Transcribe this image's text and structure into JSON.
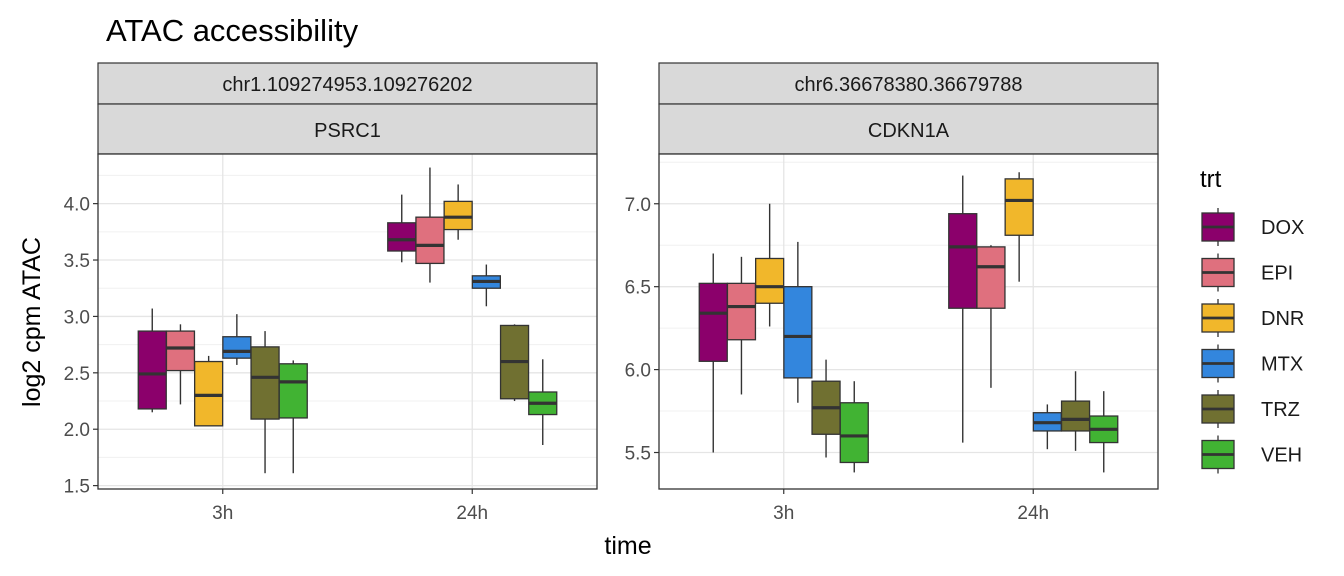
{
  "chart_data": {
    "type": "boxplot",
    "title": "ATAC accessibility",
    "xlabel": "time",
    "ylabel": "log2 cpm ATAC",
    "categories": [
      "3h",
      "24h"
    ],
    "legend": {
      "title": "trt",
      "position": "right",
      "items": [
        {
          "name": "DOX",
          "color": "#8B006B"
        },
        {
          "name": "EPI",
          "color": "#DF707E"
        },
        {
          "name": "DNR",
          "color": "#F1B72B"
        },
        {
          "name": "MTX",
          "color": "#3386DD"
        },
        {
          "name": "TRZ",
          "color": "#707031"
        },
        {
          "name": "VEH",
          "color": "#41B333"
        }
      ]
    },
    "panels": [
      {
        "strip_top": "chr1.109274953.109276202",
        "strip_bottom": "PSRC1",
        "ylim": [
          1.47,
          4.44
        ],
        "yticks": [
          1.5,
          2.0,
          2.5,
          3.0,
          3.5,
          4.0
        ],
        "ytick_labels": [
          "1.5",
          "2.0",
          "2.5",
          "3.0",
          "3.5",
          "4.0"
        ],
        "grid": true,
        "boxes": [
          {
            "time": "3h",
            "trt": "DOX",
            "min": 2.15,
            "q1": 2.18,
            "median": 2.49,
            "q3": 2.87,
            "max": 3.07
          },
          {
            "time": "3h",
            "trt": "EPI",
            "min": 2.22,
            "q1": 2.52,
            "median": 2.72,
            "q3": 2.87,
            "max": 2.93
          },
          {
            "time": "3h",
            "trt": "DNR",
            "min": 2.03,
            "q1": 2.03,
            "median": 2.3,
            "q3": 2.6,
            "max": 2.65
          },
          {
            "time": "3h",
            "trt": "MTX",
            "min": 2.57,
            "q1": 2.63,
            "median": 2.69,
            "q3": 2.82,
            "max": 3.02
          },
          {
            "time": "3h",
            "trt": "TRZ",
            "min": 1.61,
            "q1": 2.09,
            "median": 2.46,
            "q3": 2.73,
            "max": 2.87
          },
          {
            "time": "3h",
            "trt": "VEH",
            "min": 1.61,
            "q1": 2.1,
            "median": 2.42,
            "q3": 2.58,
            "max": 2.61
          },
          {
            "time": "24h",
            "trt": "DOX",
            "min": 3.48,
            "q1": 3.58,
            "median": 3.68,
            "q3": 3.83,
            "max": 4.08
          },
          {
            "time": "24h",
            "trt": "EPI",
            "min": 3.3,
            "q1": 3.47,
            "median": 3.63,
            "q3": 3.88,
            "max": 4.32
          },
          {
            "time": "24h",
            "trt": "DNR",
            "min": 3.68,
            "q1": 3.77,
            "median": 3.88,
            "q3": 4.02,
            "max": 4.17
          },
          {
            "time": "24h",
            "trt": "MTX",
            "min": 3.09,
            "q1": 3.25,
            "median": 3.31,
            "q3": 3.36,
            "max": 3.46
          },
          {
            "time": "24h",
            "trt": "TRZ",
            "min": 2.25,
            "q1": 2.27,
            "median": 2.6,
            "q3": 2.92,
            "max": 2.93
          },
          {
            "time": "24h",
            "trt": "VEH",
            "min": 1.86,
            "q1": 2.13,
            "median": 2.23,
            "q3": 2.33,
            "max": 2.62
          }
        ]
      },
      {
        "strip_top": "chr6.36678380.36679788",
        "strip_bottom": "CDKN1A",
        "ylim": [
          5.28,
          7.3
        ],
        "yticks": [
          5.5,
          6.0,
          6.5,
          7.0
        ],
        "ytick_labels": [
          "5.5",
          "6.0",
          "6.5",
          "7.0"
        ],
        "grid": true,
        "boxes": [
          {
            "time": "3h",
            "trt": "DOX",
            "min": 5.5,
            "q1": 6.05,
            "median": 6.34,
            "q3": 6.52,
            "max": 6.7
          },
          {
            "time": "3h",
            "trt": "EPI",
            "min": 5.85,
            "q1": 6.18,
            "median": 6.38,
            "q3": 6.52,
            "max": 6.68
          },
          {
            "time": "3h",
            "trt": "DNR",
            "min": 6.26,
            "q1": 6.4,
            "median": 6.5,
            "q3": 6.67,
            "max": 7.0
          },
          {
            "time": "3h",
            "trt": "MTX",
            "min": 5.8,
            "q1": 5.95,
            "median": 6.2,
            "q3": 6.5,
            "max": 6.77
          },
          {
            "time": "3h",
            "trt": "TRZ",
            "min": 5.47,
            "q1": 5.61,
            "median": 5.77,
            "q3": 5.93,
            "max": 6.06
          },
          {
            "time": "3h",
            "trt": "VEH",
            "min": 5.38,
            "q1": 5.44,
            "median": 5.6,
            "q3": 5.8,
            "max": 5.93
          },
          {
            "time": "24h",
            "trt": "DOX",
            "min": 5.56,
            "q1": 6.37,
            "median": 6.74,
            "q3": 6.94,
            "max": 7.17
          },
          {
            "time": "24h",
            "trt": "EPI",
            "min": 5.89,
            "q1": 6.37,
            "median": 6.62,
            "q3": 6.74,
            "max": 6.75
          },
          {
            "time": "24h",
            "trt": "DNR",
            "min": 6.53,
            "q1": 6.81,
            "median": 7.02,
            "q3": 7.15,
            "max": 7.19
          },
          {
            "time": "24h",
            "trt": "MTX",
            "min": 5.52,
            "q1": 5.63,
            "median": 5.68,
            "q3": 5.74,
            "max": 5.79
          },
          {
            "time": "24h",
            "trt": "TRZ",
            "min": 5.51,
            "q1": 5.63,
            "median": 5.7,
            "q3": 5.81,
            "max": 5.99
          },
          {
            "time": "24h",
            "trt": "VEH",
            "min": 5.38,
            "q1": 5.56,
            "median": 5.64,
            "q3": 5.72,
            "max": 5.87
          }
        ]
      }
    ]
  }
}
